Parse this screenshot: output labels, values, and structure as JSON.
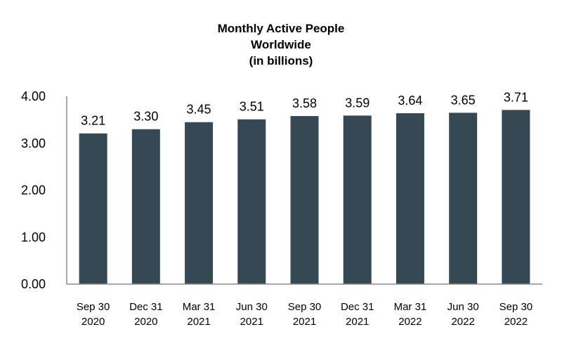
{
  "colors": {
    "bar": "#354954",
    "axis": "#8c8c8c",
    "text": "#000000",
    "background": "#ffffff"
  },
  "chart_data": {
    "type": "bar",
    "title_lines": [
      "Monthly Active People",
      "Worldwide",
      "(in billions)"
    ],
    "xlabel": "",
    "ylabel": "",
    "ylim": [
      0,
      4
    ],
    "yticks": [
      "0.00",
      "1.00",
      "2.00",
      "3.00",
      "4.00"
    ],
    "grid": false,
    "legend": "none",
    "categories": [
      [
        "Sep 30",
        "2020"
      ],
      [
        "Dec 31",
        "2020"
      ],
      [
        "Mar 31",
        "2021"
      ],
      [
        "Jun 30",
        "2021"
      ],
      [
        "Sep 30",
        "2021"
      ],
      [
        "Dec 31",
        "2021"
      ],
      [
        "Mar 31",
        "2022"
      ],
      [
        "Jun 30",
        "2022"
      ],
      [
        "Sep 30",
        "2022"
      ]
    ],
    "values": [
      3.21,
      3.3,
      3.45,
      3.51,
      3.58,
      3.59,
      3.64,
      3.65,
      3.71
    ],
    "value_labels": [
      "3.21",
      "3.30",
      "3.45",
      "3.51",
      "3.58",
      "3.59",
      "3.64",
      "3.65",
      "3.71"
    ]
  }
}
